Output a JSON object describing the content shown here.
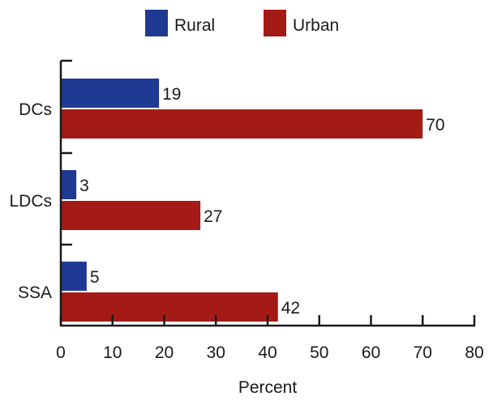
{
  "chart_data": {
    "type": "bar",
    "orientation": "horizontal",
    "categories": [
      "DCs",
      "LDCs",
      "SSA"
    ],
    "series": [
      {
        "name": "Rural",
        "values": [
          19,
          3,
          5
        ],
        "color": "#1f3a93"
      },
      {
        "name": "Urban",
        "values": [
          70,
          27,
          42
        ],
        "color": "#a31a17"
      }
    ],
    "xlabel": "Percent",
    "ylabel": "",
    "xlim": [
      0,
      80
    ],
    "xticks": [
      0,
      10,
      20,
      30,
      40,
      50,
      60,
      70,
      80
    ],
    "grid": false,
    "legend": "top"
  }
}
